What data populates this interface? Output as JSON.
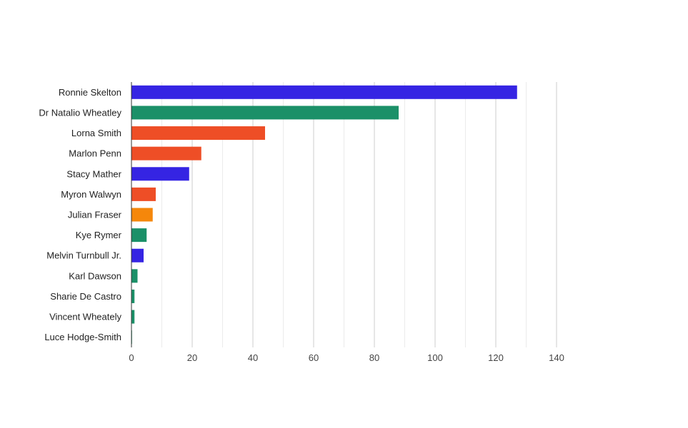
{
  "chart_data": {
    "type": "bar",
    "orientation": "horizontal",
    "title": "",
    "xlabel": "",
    "ylabel": "",
    "categories": [
      "Ronnie Skelton",
      "Dr Natalio Wheatley",
      "Lorna Smith",
      "Marlon Penn",
      "Stacy Mather",
      "Myron Walwyn",
      "Julian Fraser",
      "Kye Rymer",
      "Melvin Turnbull Jr.",
      "Karl Dawson",
      "Sharie De Castro",
      "Vincent Wheately",
      "Luce Hodge-Smith"
    ],
    "values": [
      127,
      88,
      44,
      23,
      19,
      8,
      7,
      5,
      4,
      2,
      1,
      1,
      0
    ],
    "bar_colors": [
      "#3524e3",
      "#1b9068",
      "#ee4e26",
      "#ee4e26",
      "#3524e3",
      "#ee4e26",
      "#f5870b",
      "#1b9068",
      "#3524e3",
      "#1b9068",
      "#1b9068",
      "#1b9068",
      "#1b9068"
    ],
    "xlim": [
      0,
      140
    ],
    "xticks": [
      "0",
      "20",
      "40",
      "60",
      "80",
      "100",
      "120",
      "140"
    ],
    "grid": true,
    "legend": "none"
  }
}
